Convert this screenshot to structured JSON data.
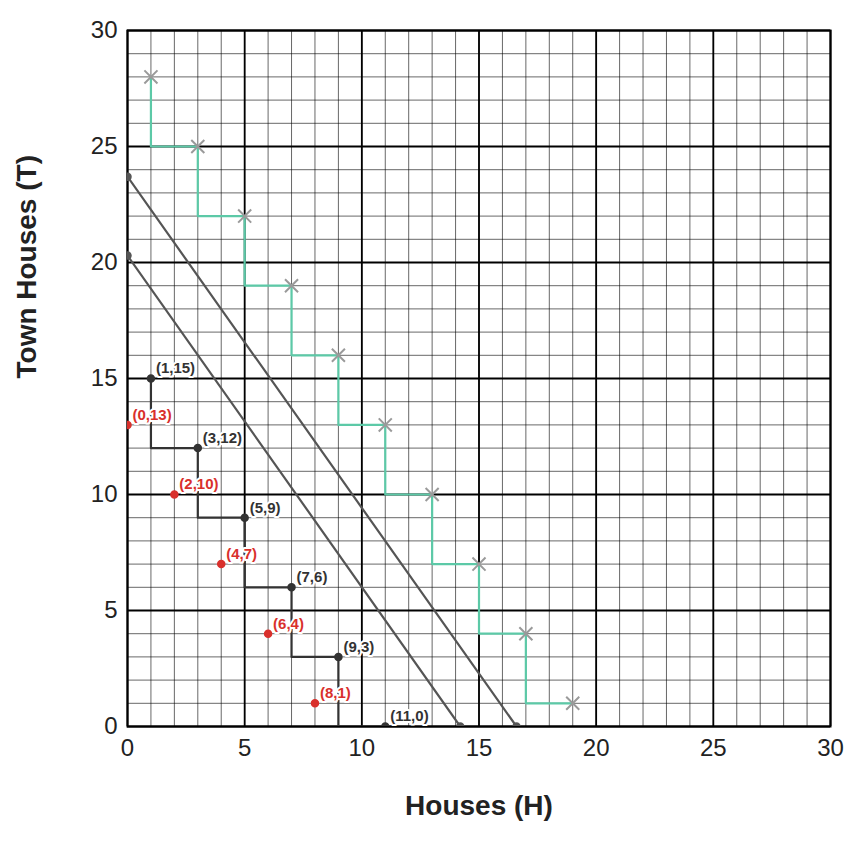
{
  "chart_data": {
    "type": "line",
    "xlabel": "Houses (H)",
    "ylabel": "Town Houses (T)",
    "xlim": [
      0,
      30
    ],
    "ylim": [
      0,
      30
    ],
    "xticks": [
      0,
      5,
      10,
      15,
      20,
      25,
      30
    ],
    "yticks": [
      0,
      5,
      10,
      15,
      20,
      25,
      30
    ],
    "grid": true,
    "series": [
      {
        "color": "#5cc9a7",
        "line_style": "solid",
        "marker": "none",
        "x": [
          1,
          1,
          3,
          3,
          5,
          5,
          7,
          7,
          9,
          9,
          11,
          11,
          13,
          13,
          15,
          15,
          17,
          17,
          19
        ],
        "y": [
          28,
          25,
          25,
          22,
          22,
          19,
          19,
          16,
          16,
          13,
          13,
          10,
          10,
          7,
          7,
          4,
          4,
          1,
          1
        ]
      },
      {
        "color": "#9a9a9a",
        "line_style": "none",
        "marker": "x",
        "x": [
          1,
          3,
          5,
          7,
          9,
          11,
          13,
          15,
          17,
          19
        ],
        "y": [
          28,
          25,
          22,
          19,
          16,
          13,
          10,
          7,
          4,
          1
        ]
      },
      {
        "color": "#555555",
        "line_style": "solid",
        "marker": "dot",
        "x": [
          0,
          16.6
        ],
        "y": [
          23.7,
          0
        ]
      },
      {
        "color": "#555555",
        "line_style": "solid",
        "marker": "dot",
        "x": [
          0,
          14.2
        ],
        "y": [
          20.3,
          0
        ]
      },
      {
        "color": "#333333",
        "line_style": "solid",
        "marker": "none",
        "x": [
          1,
          1,
          3,
          3,
          5,
          5,
          7,
          7,
          9,
          9,
          11
        ],
        "y": [
          15,
          12,
          12,
          9,
          9,
          6,
          6,
          3,
          3,
          0,
          0
        ]
      },
      {
        "color": "#333333",
        "line_style": "none",
        "marker": "dot",
        "x": [
          1,
          3,
          5,
          7,
          9,
          11
        ],
        "y": [
          15,
          12,
          9,
          6,
          3,
          0
        ],
        "labels": [
          "(1,15)",
          "(3,12)",
          "(5,9)",
          "(7,6)",
          "(9,3)",
          "(11,0)"
        ]
      },
      {
        "color": "#d9302c",
        "line_style": "none",
        "marker": "dot",
        "x": [
          0,
          2,
          4,
          6,
          8
        ],
        "y": [
          13,
          10,
          7,
          4,
          1
        ],
        "labels": [
          "(0,13)",
          "(2,10)",
          "(4,7)",
          "(6,4)",
          "(8,1)"
        ]
      }
    ]
  }
}
